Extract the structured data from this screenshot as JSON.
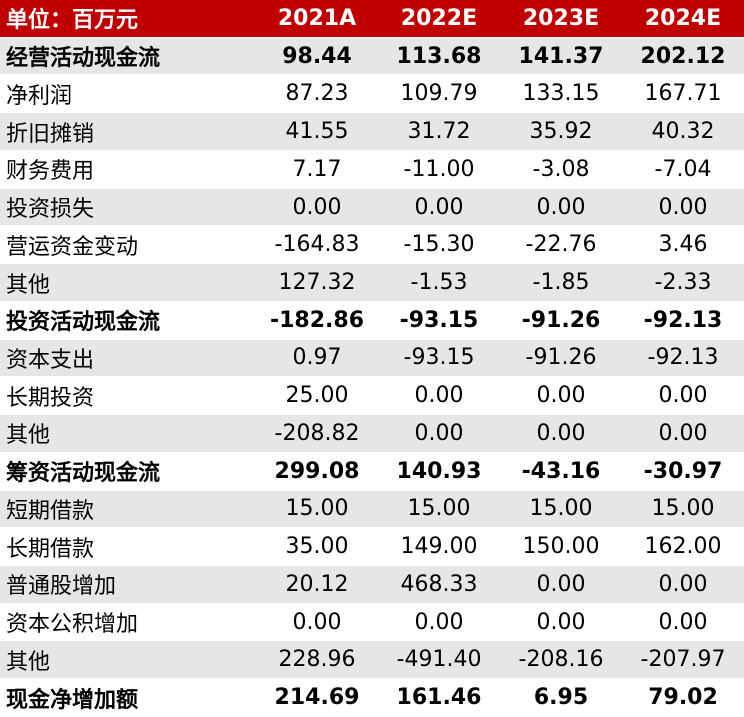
{
  "header": {
    "label": "单位：百万元",
    "years": [
      "2021A",
      "2022E",
      "2023E",
      "2024E"
    ]
  },
  "rows": [
    {
      "label": "经营活动现金流",
      "values": [
        "98.44",
        "113.68",
        "141.37",
        "202.12"
      ],
      "bold": true
    },
    {
      "label": "净利润",
      "values": [
        "87.23",
        "109.79",
        "133.15",
        "167.71"
      ],
      "bold": false
    },
    {
      "label": "折旧摊销",
      "values": [
        "41.55",
        "31.72",
        "35.92",
        "40.32"
      ],
      "bold": false
    },
    {
      "label": "财务费用",
      "values": [
        "7.17",
        "-11.00",
        "-3.08",
        "-7.04"
      ],
      "bold": false
    },
    {
      "label": "投资损失",
      "values": [
        "0.00",
        "0.00",
        "0.00",
        "0.00"
      ],
      "bold": false
    },
    {
      "label": "营运资金变动",
      "values": [
        "-164.83",
        "-15.30",
        "-22.76",
        "3.46"
      ],
      "bold": false
    },
    {
      "label": "其他",
      "values": [
        "127.32",
        "-1.53",
        "-1.85",
        "-2.33"
      ],
      "bold": false
    },
    {
      "label": "投资活动现金流",
      "values": [
        "-182.86",
        "-93.15",
        "-91.26",
        "-92.13"
      ],
      "bold": true
    },
    {
      "label": "资本支出",
      "values": [
        "0.97",
        "-93.15",
        "-91.26",
        "-92.13"
      ],
      "bold": false
    },
    {
      "label": "长期投资",
      "values": [
        "25.00",
        "0.00",
        "0.00",
        "0.00"
      ],
      "bold": false
    },
    {
      "label": "其他",
      "values": [
        "-208.82",
        "0.00",
        "0.00",
        "0.00"
      ],
      "bold": false
    },
    {
      "label": "筹资活动现金流",
      "values": [
        "299.08",
        "140.93",
        "-43.16",
        "-30.97"
      ],
      "bold": true
    },
    {
      "label": "短期借款",
      "values": [
        "15.00",
        "15.00",
        "15.00",
        "15.00"
      ],
      "bold": false
    },
    {
      "label": "长期借款",
      "values": [
        "35.00",
        "149.00",
        "150.00",
        "162.00"
      ],
      "bold": false
    },
    {
      "label": "普通股增加",
      "values": [
        "20.12",
        "468.33",
        "0.00",
        "0.00"
      ],
      "bold": false
    },
    {
      "label": "资本公积增加",
      "values": [
        "0.00",
        "0.00",
        "0.00",
        "0.00"
      ],
      "bold": false
    },
    {
      "label": "其他",
      "values": [
        "228.96",
        "-491.40",
        "-208.16",
        "-207.97"
      ],
      "bold": false
    },
    {
      "label": "现金净增加额",
      "values": [
        "214.69",
        "161.46",
        "6.95",
        "79.02"
      ],
      "bold": true
    }
  ],
  "colors": {
    "header_bg": "#c00000",
    "header_text": "#ffffff",
    "shaded_row": "#e7e6e6"
  }
}
